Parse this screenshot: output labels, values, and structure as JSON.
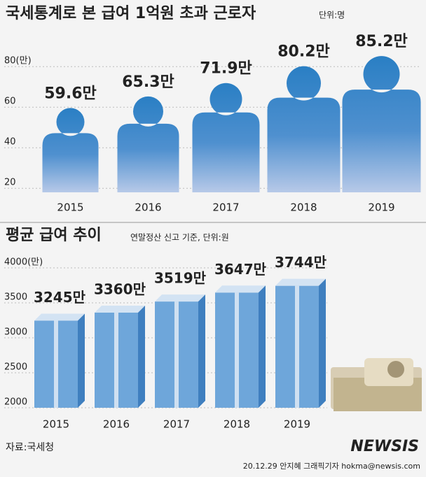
{
  "chart_data": [
    {
      "type": "person",
      "title": "국세통계로 본 급여 1억원 초과 근로자",
      "unit": "단위:명",
      "categories": [
        "2015",
        "2016",
        "2017",
        "2018",
        "2019"
      ],
      "values": [
        59.6,
        65.3,
        71.9,
        80.2,
        85.2
      ],
      "value_labels": [
        "59.6만",
        "65.3만",
        "71.9만",
        "80.2만",
        "85.2만"
      ],
      "color": "#2a7fc4",
      "ylim": [
        18,
        88
      ],
      "yticks": [
        20,
        40,
        60,
        {
          "value": 80,
          "label": "80(만)"
        }
      ],
      "grid": true
    },
    {
      "type": "bar",
      "title": "평균 급여 추이",
      "subtitle": "연말정산 신고 기준, 단위:원",
      "categories": [
        "2015",
        "2016",
        "2017",
        "2018",
        "2019"
      ],
      "values": [
        3245,
        3360,
        3519,
        3647,
        3744
      ],
      "value_labels": [
        "3245만",
        "3360만",
        "3519만",
        "3647만",
        "3744만"
      ],
      "color": "#6ea6da",
      "ylim": [
        2000,
        4000
      ],
      "yticks": [
        2000,
        2500,
        3000,
        3500,
        {
          "value": 4000,
          "label": "4000(만)"
        }
      ],
      "grid": true
    }
  ],
  "source": "자료:국세청",
  "credit": "20.12.29 안지혜 그래픽기자 hokma@newsis.com",
  "watermark": "NEWSIS"
}
